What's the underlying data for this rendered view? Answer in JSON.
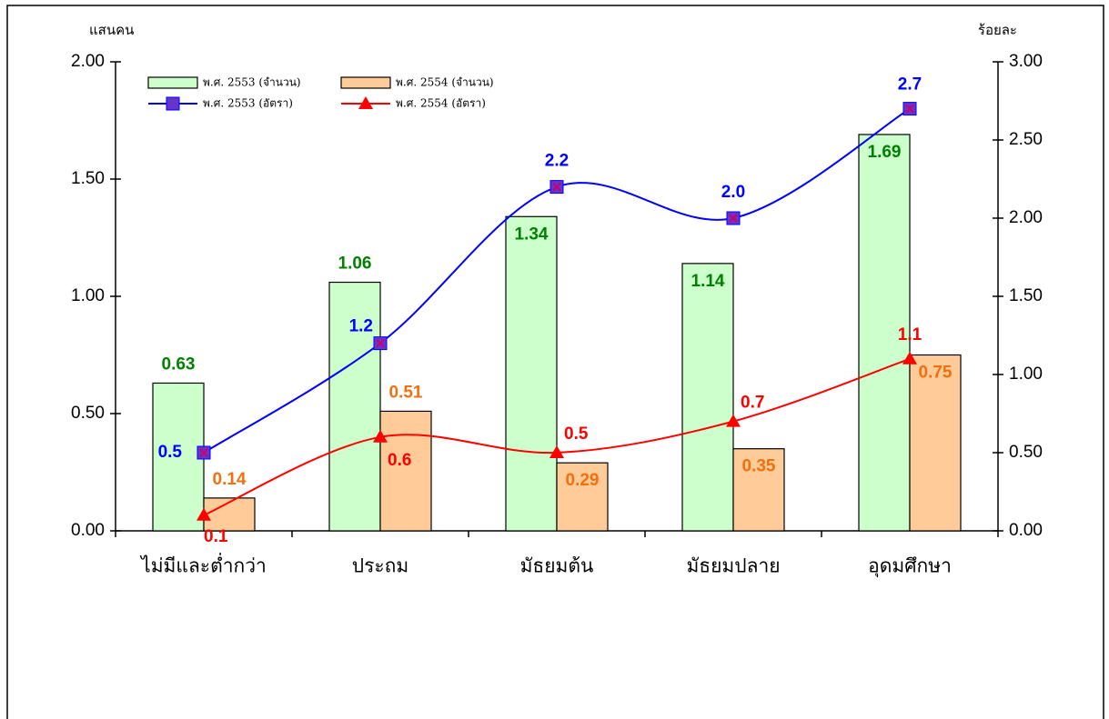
{
  "chart_data": {
    "type": "bar",
    "y_label": "แสนคน",
    "y2_label": "ร้อยละ",
    "categories": [
      "ไม่มีและต่ำกว่า",
      "ประถม",
      "มัธยมต้น",
      "มัธยมปลาย",
      "อุดมศึกษา"
    ],
    "series": [
      {
        "name": "พ.ศ. 2553 (จำนวน)",
        "color": "#ccffcc",
        "label_color": "#008000",
        "values": [
          0.63,
          1.06,
          1.34,
          1.14,
          1.69
        ]
      },
      {
        "name": "พ.ศ. 2554 (จำนวน)",
        "color": "#ffcc99",
        "label_color": "#f07010",
        "values": [
          0.14,
          0.51,
          0.29,
          0.35,
          0.75
        ]
      },
      {
        "name": "พ.ศ. 2553 (อัตรา)",
        "type": "line",
        "axis": "y2",
        "color": "#0000ff",
        "marker_color": "#6633cc",
        "marker": "square",
        "values": [
          0.5,
          1.2,
          2.2,
          2.0,
          2.7
        ],
        "value_labels": [
          "0.5",
          "1.2",
          "2.2",
          "2.0",
          "2.7"
        ]
      },
      {
        "name": "พ.ศ. 2554 (อัตรา)",
        "type": "line",
        "axis": "y2",
        "color": "#ff0000",
        "marker_color": "#ff0000",
        "marker": "triangle",
        "values": [
          0.1,
          0.6,
          0.5,
          0.7,
          1.1
        ],
        "value_labels": [
          "0.1",
          "0.6",
          "0.5",
          "0.7",
          "1.1"
        ]
      }
    ],
    "ylim": [
      0,
      2
    ],
    "yticks": [
      {
        "value": 0,
        "label": "0.00"
      },
      {
        "value": 0.5,
        "label": "0.50"
      },
      {
        "value": 1,
        "label": "1.00"
      },
      {
        "value": 1.5,
        "label": "1.50"
      },
      {
        "value": 2,
        "label": "2.00"
      }
    ],
    "y2lim": [
      0,
      3
    ],
    "y2ticks": [
      {
        "value": 0,
        "label": "0.00"
      },
      {
        "value": 0.5,
        "label": "0.50"
      },
      {
        "value": 1,
        "label": "1.00"
      },
      {
        "value": 1.5,
        "label": "1.50"
      },
      {
        "value": 2,
        "label": "2.00"
      },
      {
        "value": 2.5,
        "label": "2.50"
      },
      {
        "value": 3,
        "label": "3.00"
      }
    ],
    "grid": false
  }
}
